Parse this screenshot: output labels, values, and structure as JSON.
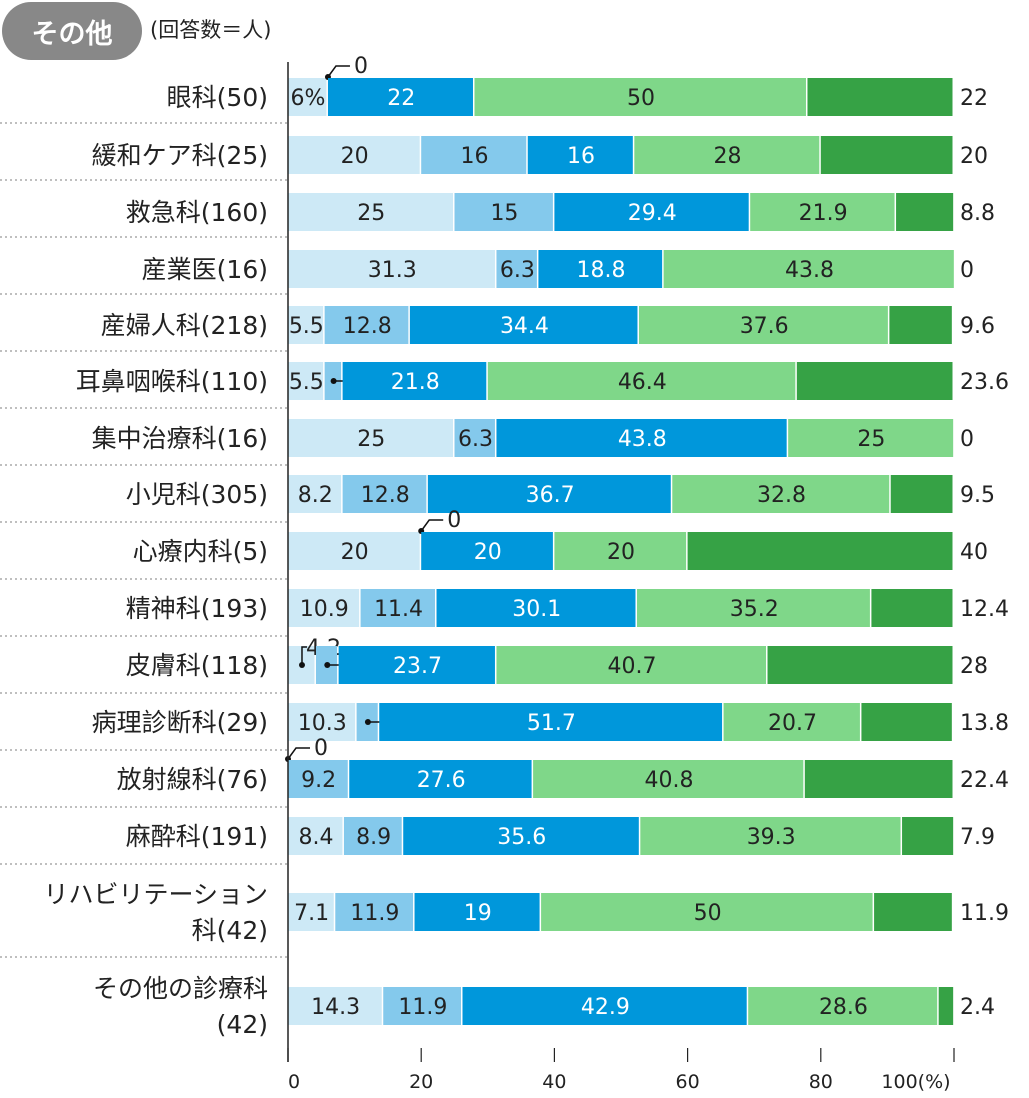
{
  "header": {
    "badge": "その他",
    "note": "(回答数＝人)"
  },
  "chart_data": {
    "type": "bar",
    "orientation": "horizontal",
    "stacked": true,
    "title": "その他",
    "xlim": [
      0,
      100
    ],
    "xticks": [
      "0",
      "20",
      "40",
      "60",
      "80",
      "100(%)"
    ],
    "colors": [
      "#cde9f6",
      "#84c9ec",
      "#0097db",
      "#7fd789",
      "#36a245"
    ],
    "categories": [
      "眼科(50)",
      "緩和ケア科(25)",
      "救急科(160)",
      "産業医(16)",
      "産婦人科(218)",
      "耳鼻咽喉科(110)",
      "集中治療科(16)",
      "小児科(305)",
      "心療内科(5)",
      "精神科(193)",
      "皮膚科(118)",
      "病理診断科(29)",
      "放射線科(76)",
      "麻酔科(191)",
      "リハビリテーション科(42)",
      "その他の診療科(42)"
    ],
    "values": [
      [
        6,
        0,
        22,
        50,
        22
      ],
      [
        20,
        16,
        16,
        28,
        20
      ],
      [
        25,
        15,
        29.4,
        21.9,
        8.8
      ],
      [
        31.3,
        6.3,
        18.8,
        43.8,
        0
      ],
      [
        5.5,
        12.8,
        34.4,
        37.6,
        9.6
      ],
      [
        5.5,
        2.7,
        21.8,
        46.4,
        23.6
      ],
      [
        25,
        6.3,
        43.8,
        25,
        0
      ],
      [
        8.2,
        12.8,
        36.7,
        32.8,
        9.5
      ],
      [
        20,
        0,
        20,
        20,
        40
      ],
      [
        10.9,
        11.4,
        30.1,
        35.2,
        12.4
      ],
      [
        4.2,
        3.4,
        23.7,
        40.7,
        28
      ],
      [
        10.3,
        3.4,
        51.7,
        20.7,
        13.8
      ],
      [
        0,
        9.2,
        27.6,
        40.8,
        22.4
      ],
      [
        8.4,
        8.9,
        35.6,
        39.3,
        7.9
      ],
      [
        7.1,
        11.9,
        19,
        50,
        11.9
      ],
      [
        14.3,
        11.9,
        42.9,
        28.6,
        2.4
      ]
    ],
    "first_label_suffix": "%",
    "grid": false
  }
}
